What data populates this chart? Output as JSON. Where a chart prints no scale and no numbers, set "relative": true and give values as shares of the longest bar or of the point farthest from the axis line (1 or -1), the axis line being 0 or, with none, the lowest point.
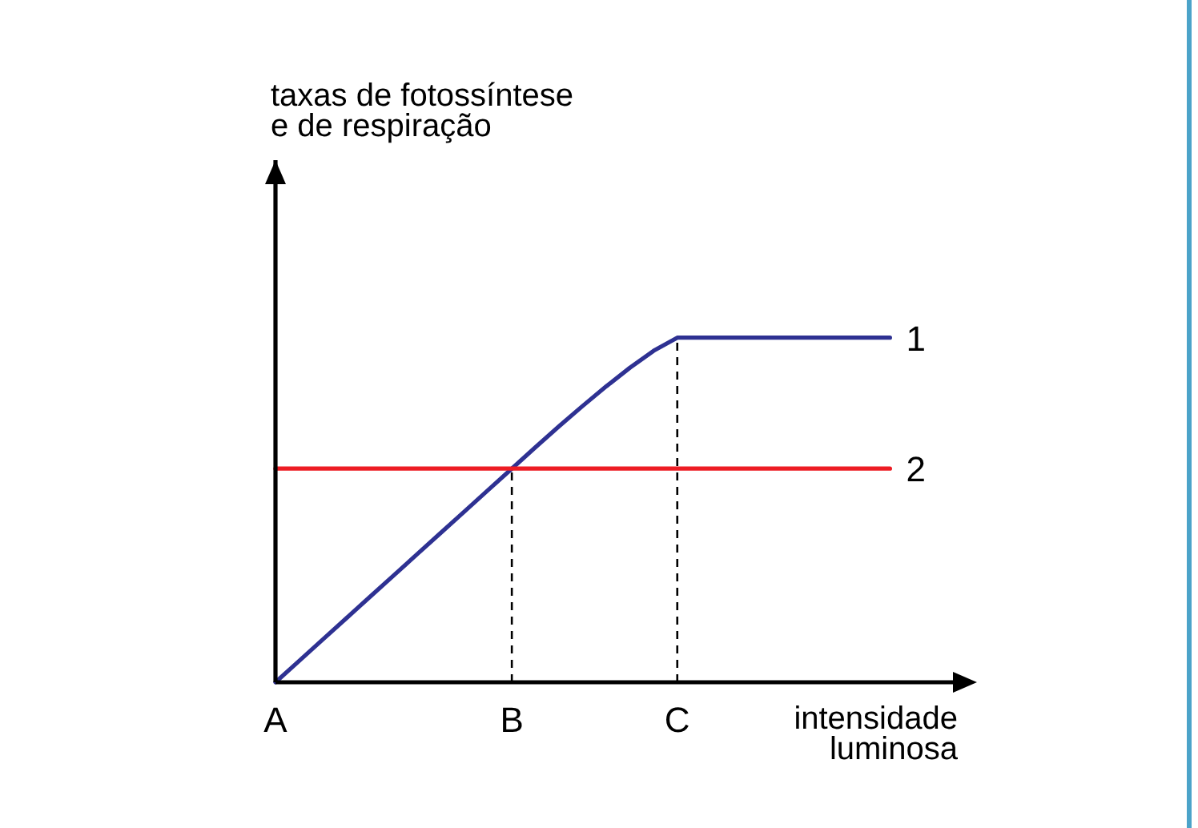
{
  "chart_data": {
    "type": "line",
    "relative": true,
    "xlabel": "intensidade luminosa",
    "annotations": [
      "taxas de fotossíntese e de respiração"
    ],
    "categories": [
      "A",
      null,
      null,
      null,
      null,
      null,
      null,
      null,
      null,
      null,
      "B",
      null,
      null,
      null,
      null,
      null,
      null,
      "C",
      null,
      null,
      null,
      null,
      null,
      null,
      null,
      null,
      null
    ],
    "series": [
      {
        "name": "1",
        "color": "#2e3192",
        "values": [
          0,
          0.062,
          0.124,
          0.186,
          0.248,
          0.31,
          0.372,
          0.434,
          0.496,
          0.558,
          0.62,
          0.682,
          0.743,
          0.802,
          0.859,
          0.913,
          0.962,
          1,
          1,
          1,
          1,
          1,
          1,
          1,
          1,
          1,
          1
        ]
      },
      {
        "name": "2",
        "color": "#ed1c24",
        "values": [
          0.62,
          0.62,
          0.62,
          0.62,
          0.62,
          0.62,
          0.62,
          0.62,
          0.62,
          0.62,
          0.62,
          0.62,
          0.62,
          0.62,
          0.62,
          0.62,
          0.62,
          0.62,
          0.62,
          0.62,
          0.62,
          0.62,
          0.62,
          0.62,
          0.62,
          0.62,
          0.62
        ]
      }
    ],
    "ref_lines": [
      {
        "axis": "x",
        "value": "B",
        "color": "#000000",
        "line_style": "dashed"
      },
      {
        "axis": "x",
        "value": "C",
        "color": "#000000",
        "line_style": "dashed"
      }
    ]
  }
}
